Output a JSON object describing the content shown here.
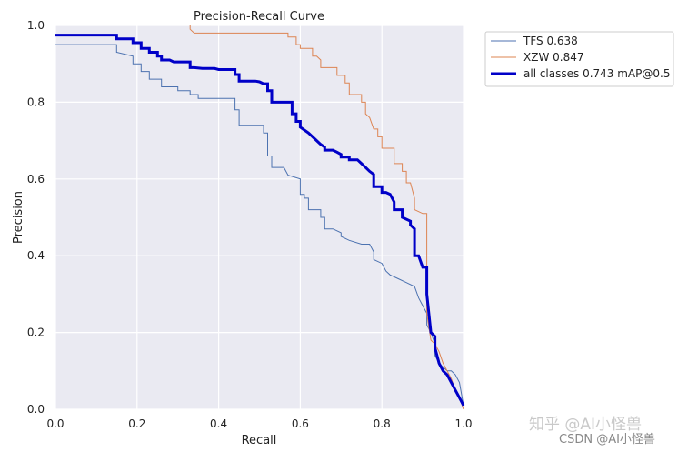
{
  "chart_data": {
    "type": "line",
    "title": "Precision-Recall Curve",
    "xlabel": "Recall",
    "ylabel": "Precision",
    "xlim": [
      0,
      1
    ],
    "ylim": [
      0,
      1
    ],
    "xticks": [
      "0.0",
      "0.2",
      "0.4",
      "0.6",
      "0.8",
      "1.0"
    ],
    "yticks": [
      "0.0",
      "0.2",
      "0.4",
      "0.6",
      "0.8",
      "1.0"
    ],
    "grid": true,
    "legend_position": "outside-top-right",
    "series": [
      {
        "name": "TFS 0.638",
        "color": "#4c72b0",
        "width": "thin",
        "points": [
          [
            0,
            0.95
          ],
          [
            0.15,
            0.95
          ],
          [
            0.15,
            0.93
          ],
          [
            0.19,
            0.92
          ],
          [
            0.19,
            0.9
          ],
          [
            0.21,
            0.9
          ],
          [
            0.21,
            0.88
          ],
          [
            0.23,
            0.88
          ],
          [
            0.23,
            0.86
          ],
          [
            0.26,
            0.86
          ],
          [
            0.26,
            0.84
          ],
          [
            0.28,
            0.84
          ],
          [
            0.3,
            0.84
          ],
          [
            0.3,
            0.83
          ],
          [
            0.33,
            0.83
          ],
          [
            0.33,
            0.82
          ],
          [
            0.35,
            0.82
          ],
          [
            0.35,
            0.81
          ],
          [
            0.38,
            0.81
          ],
          [
            0.44,
            0.81
          ],
          [
            0.44,
            0.8
          ],
          [
            0.44,
            0.78
          ],
          [
            0.45,
            0.78
          ],
          [
            0.45,
            0.74
          ],
          [
            0.47,
            0.74
          ],
          [
            0.51,
            0.74
          ],
          [
            0.51,
            0.72
          ],
          [
            0.52,
            0.72
          ],
          [
            0.52,
            0.66
          ],
          [
            0.53,
            0.66
          ],
          [
            0.53,
            0.63
          ],
          [
            0.56,
            0.63
          ],
          [
            0.57,
            0.61
          ],
          [
            0.6,
            0.6
          ],
          [
            0.6,
            0.56
          ],
          [
            0.61,
            0.56
          ],
          [
            0.61,
            0.55
          ],
          [
            0.62,
            0.55
          ],
          [
            0.62,
            0.52
          ],
          [
            0.65,
            0.52
          ],
          [
            0.65,
            0.5
          ],
          [
            0.66,
            0.5
          ],
          [
            0.66,
            0.47
          ],
          [
            0.68,
            0.47
          ],
          [
            0.7,
            0.46
          ],
          [
            0.7,
            0.45
          ],
          [
            0.72,
            0.44
          ],
          [
            0.75,
            0.43
          ],
          [
            0.77,
            0.43
          ],
          [
            0.78,
            0.41
          ],
          [
            0.78,
            0.39
          ],
          [
            0.8,
            0.38
          ],
          [
            0.81,
            0.36
          ],
          [
            0.82,
            0.35
          ],
          [
            0.84,
            0.34
          ],
          [
            0.86,
            0.33
          ],
          [
            0.88,
            0.32
          ],
          [
            0.89,
            0.29
          ],
          [
            0.9,
            0.27
          ],
          [
            0.91,
            0.25
          ],
          [
            0.91,
            0.22
          ],
          [
            0.92,
            0.2
          ],
          [
            0.93,
            0.17
          ],
          [
            0.93,
            0.14
          ],
          [
            0.94,
            0.12
          ],
          [
            0.95,
            0.11
          ],
          [
            0.96,
            0.1
          ],
          [
            0.97,
            0.1
          ],
          [
            0.98,
            0.09
          ],
          [
            0.99,
            0.07
          ],
          [
            1.0,
            0.01
          ]
        ]
      },
      {
        "name": "XZW 0.847",
        "color": "#dd8452",
        "width": "thin",
        "points": [
          [
            0.33,
            1.0
          ],
          [
            0.33,
            0.99
          ],
          [
            0.34,
            0.98
          ],
          [
            0.57,
            0.98
          ],
          [
            0.57,
            0.97
          ],
          [
            0.59,
            0.97
          ],
          [
            0.59,
            0.95
          ],
          [
            0.6,
            0.95
          ],
          [
            0.6,
            0.94
          ],
          [
            0.63,
            0.94
          ],
          [
            0.63,
            0.92
          ],
          [
            0.64,
            0.92
          ],
          [
            0.65,
            0.91
          ],
          [
            0.65,
            0.89
          ],
          [
            0.69,
            0.89
          ],
          [
            0.69,
            0.87
          ],
          [
            0.71,
            0.87
          ],
          [
            0.71,
            0.85
          ],
          [
            0.72,
            0.85
          ],
          [
            0.72,
            0.82
          ],
          [
            0.75,
            0.82
          ],
          [
            0.75,
            0.8
          ],
          [
            0.76,
            0.8
          ],
          [
            0.76,
            0.77
          ],
          [
            0.77,
            0.76
          ],
          [
            0.78,
            0.73
          ],
          [
            0.79,
            0.73
          ],
          [
            0.79,
            0.71
          ],
          [
            0.8,
            0.71
          ],
          [
            0.8,
            0.68
          ],
          [
            0.83,
            0.68
          ],
          [
            0.83,
            0.64
          ],
          [
            0.85,
            0.64
          ],
          [
            0.85,
            0.62
          ],
          [
            0.86,
            0.62
          ],
          [
            0.86,
            0.59
          ],
          [
            0.87,
            0.59
          ],
          [
            0.88,
            0.55
          ],
          [
            0.88,
            0.52
          ],
          [
            0.9,
            0.51
          ],
          [
            0.91,
            0.51
          ],
          [
            0.91,
            0.38
          ],
          [
            0.91,
            0.25
          ],
          [
            0.92,
            0.18
          ],
          [
            0.93,
            0.17
          ],
          [
            0.94,
            0.15
          ],
          [
            0.95,
            0.12
          ],
          [
            0.96,
            0.1
          ],
          [
            0.97,
            0.08
          ],
          [
            0.98,
            0.05
          ],
          [
            0.99,
            0.03
          ],
          [
            1.0,
            0.0
          ]
        ]
      },
      {
        "name": "all classes 0.743 mAP@0.5",
        "color": "#0000c8",
        "width": "thick",
        "points": [
          [
            0,
            0.975
          ],
          [
            0.15,
            0.975
          ],
          [
            0.15,
            0.965
          ],
          [
            0.19,
            0.965
          ],
          [
            0.19,
            0.955
          ],
          [
            0.21,
            0.955
          ],
          [
            0.21,
            0.94
          ],
          [
            0.23,
            0.94
          ],
          [
            0.23,
            0.93
          ],
          [
            0.25,
            0.93
          ],
          [
            0.25,
            0.92
          ],
          [
            0.26,
            0.92
          ],
          [
            0.26,
            0.91
          ],
          [
            0.28,
            0.91
          ],
          [
            0.29,
            0.905
          ],
          [
            0.33,
            0.905
          ],
          [
            0.33,
            0.89
          ],
          [
            0.34,
            0.89
          ],
          [
            0.36,
            0.888
          ],
          [
            0.39,
            0.888
          ],
          [
            0.4,
            0.885
          ],
          [
            0.44,
            0.885
          ],
          [
            0.44,
            0.872
          ],
          [
            0.45,
            0.872
          ],
          [
            0.45,
            0.855
          ],
          [
            0.49,
            0.855
          ],
          [
            0.5,
            0.853
          ],
          [
            0.51,
            0.848
          ],
          [
            0.52,
            0.848
          ],
          [
            0.52,
            0.83
          ],
          [
            0.53,
            0.83
          ],
          [
            0.53,
            0.8
          ],
          [
            0.58,
            0.8
          ],
          [
            0.58,
            0.77
          ],
          [
            0.59,
            0.77
          ],
          [
            0.59,
            0.75
          ],
          [
            0.6,
            0.75
          ],
          [
            0.6,
            0.735
          ],
          [
            0.62,
            0.72
          ],
          [
            0.63,
            0.71
          ],
          [
            0.64,
            0.7
          ],
          [
            0.65,
            0.69
          ],
          [
            0.66,
            0.683
          ],
          [
            0.66,
            0.675
          ],
          [
            0.68,
            0.675
          ],
          [
            0.69,
            0.67
          ],
          [
            0.7,
            0.664
          ],
          [
            0.7,
            0.657
          ],
          [
            0.72,
            0.657
          ],
          [
            0.72,
            0.65
          ],
          [
            0.74,
            0.65
          ],
          [
            0.75,
            0.64
          ],
          [
            0.76,
            0.63
          ],
          [
            0.77,
            0.62
          ],
          [
            0.78,
            0.612
          ],
          [
            0.78,
            0.58
          ],
          [
            0.8,
            0.58
          ],
          [
            0.8,
            0.565
          ],
          [
            0.81,
            0.565
          ],
          [
            0.82,
            0.56
          ],
          [
            0.83,
            0.54
          ],
          [
            0.83,
            0.52
          ],
          [
            0.85,
            0.52
          ],
          [
            0.85,
            0.5
          ],
          [
            0.87,
            0.49
          ],
          [
            0.87,
            0.48
          ],
          [
            0.88,
            0.47
          ],
          [
            0.88,
            0.4
          ],
          [
            0.89,
            0.4
          ],
          [
            0.9,
            0.37
          ],
          [
            0.91,
            0.37
          ],
          [
            0.91,
            0.3
          ],
          [
            0.92,
            0.2
          ],
          [
            0.93,
            0.19
          ],
          [
            0.93,
            0.16
          ],
          [
            0.94,
            0.12
          ],
          [
            0.95,
            0.1
          ],
          [
            0.96,
            0.09
          ],
          [
            0.97,
            0.07
          ],
          [
            0.98,
            0.05
          ],
          [
            0.99,
            0.03
          ],
          [
            1.0,
            0.01
          ]
        ]
      }
    ]
  },
  "watermark": {
    "primary": "知乎 @AI小怪兽",
    "secondary": "CSDN @AI小怪兽"
  }
}
